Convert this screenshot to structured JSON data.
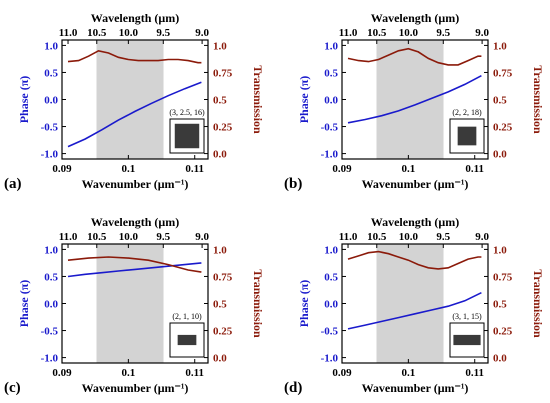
{
  "colors": {
    "phase": "#1a1acc",
    "transmission": "#8b1a0a",
    "band": "#d3d3d3",
    "axis": "#000000"
  },
  "chart_data": [
    {
      "type": "line",
      "panel_label": "(a)",
      "top_xlabel": "Wavelength (μm)",
      "top_ticks": [
        "11.0",
        "10.5",
        "10.0",
        "9.5",
        "9.0"
      ],
      "top_tick_values": [
        11.0,
        10.5,
        10.0,
        9.5,
        9.0
      ],
      "xlabel": "Wavenumber (μm⁻¹)",
      "x_ticks": [
        "0.09",
        "0.1",
        "0.11"
      ],
      "x_tick_values": [
        0.09,
        0.1,
        0.11
      ],
      "xlim": [
        0.09,
        0.112
      ],
      "ylabel_left": "Phase (π)",
      "ylim_left": [
        -1.1,
        1.1
      ],
      "y_ticks_left": [
        "-1.0",
        "-0.5",
        "0.0",
        "0.5",
        "1.0"
      ],
      "y_tick_values_left": [
        -1.0,
        -0.5,
        0.0,
        0.5,
        1.0
      ],
      "ylabel_right": "Transmission",
      "ylim_right": [
        -0.05,
        1.05
      ],
      "y_ticks_right": [
        "0.0",
        "0.25",
        "0.5",
        "0.75",
        "1.0"
      ],
      "y_tick_values_right": [
        0.0,
        0.25,
        0.5,
        0.75,
        1.0
      ],
      "shaded_band": [
        0.0952,
        0.1053
      ],
      "inset_label": "(3, 2.5, 16)",
      "inset_fill_fraction": [
        0.72,
        0.72
      ],
      "series": [
        {
          "axis": "left",
          "x": [
            0.0909,
            0.0935,
            0.096,
            0.0985,
            0.101,
            0.1035,
            0.106,
            0.1085,
            0.111
          ],
          "values": [
            -0.87,
            -0.73,
            -0.56,
            -0.38,
            -0.22,
            -0.07,
            0.07,
            0.2,
            0.32
          ]
        },
        {
          "axis": "right",
          "x": [
            0.0909,
            0.0925,
            0.094,
            0.0955,
            0.097,
            0.0985,
            0.1,
            0.1015,
            0.103,
            0.1045,
            0.106,
            0.1075,
            0.109,
            0.1105,
            0.111
          ],
          "values": [
            0.85,
            0.86,
            0.9,
            0.95,
            0.93,
            0.89,
            0.87,
            0.86,
            0.86,
            0.86,
            0.87,
            0.87,
            0.86,
            0.84,
            0.84
          ]
        }
      ]
    },
    {
      "type": "line",
      "panel_label": "(b)",
      "top_xlabel": "Wavelength (μm)",
      "top_ticks": [
        "11.0",
        "10.5",
        "10.0",
        "9.5",
        "9.0"
      ],
      "top_tick_values": [
        11.0,
        10.5,
        10.0,
        9.5,
        9.0
      ],
      "xlabel": "Wavenumber (μm⁻¹)",
      "x_ticks": [
        "0.09",
        "0.1",
        "0.11"
      ],
      "x_tick_values": [
        0.09,
        0.1,
        0.11
      ],
      "xlim": [
        0.09,
        0.112
      ],
      "ylabel_left": "Phase (π)",
      "ylim_left": [
        -1.1,
        1.1
      ],
      "y_ticks_left": [
        "-1.0",
        "-0.5",
        "0.0",
        "0.5",
        "1.0"
      ],
      "y_tick_values_left": [
        -1.0,
        -0.5,
        0.0,
        0.5,
        1.0
      ],
      "ylabel_right": "Transmission",
      "ylim_right": [
        -0.05,
        1.05
      ],
      "y_ticks_right": [
        "0.0",
        "0.25",
        "0.5",
        "0.75",
        "1.0"
      ],
      "y_tick_values_right": [
        0.0,
        0.25,
        0.5,
        0.75,
        1.0
      ],
      "shaded_band": [
        0.0952,
        0.1053
      ],
      "inset_label": "(2, 2, 18)",
      "inset_fill_fraction": [
        0.55,
        0.55
      ],
      "series": [
        {
          "axis": "left",
          "x": [
            0.0909,
            0.0935,
            0.096,
            0.0985,
            0.101,
            0.1035,
            0.106,
            0.1085,
            0.111
          ],
          "values": [
            -0.43,
            -0.37,
            -0.3,
            -0.21,
            -0.1,
            0.02,
            0.14,
            0.28,
            0.44
          ]
        },
        {
          "axis": "right",
          "x": [
            0.0909,
            0.0925,
            0.094,
            0.0955,
            0.097,
            0.0985,
            0.1,
            0.1015,
            0.103,
            0.1045,
            0.106,
            0.1075,
            0.109,
            0.1105,
            0.111
          ],
          "values": [
            0.88,
            0.86,
            0.85,
            0.87,
            0.91,
            0.95,
            0.97,
            0.94,
            0.88,
            0.84,
            0.82,
            0.82,
            0.86,
            0.9,
            0.9
          ]
        }
      ]
    },
    {
      "type": "line",
      "panel_label": "(c)",
      "top_xlabel": "Wavelength (μm)",
      "top_ticks": [
        "11.0",
        "10.5",
        "10.0",
        "9.5",
        "9.0"
      ],
      "top_tick_values": [
        11.0,
        10.5,
        10.0,
        9.5,
        9.0
      ],
      "xlabel": "Wavenumber (μm⁻¹)",
      "x_ticks": [
        "0.09",
        "0.1",
        "0.11"
      ],
      "x_tick_values": [
        0.09,
        0.1,
        0.11
      ],
      "xlim": [
        0.09,
        0.112
      ],
      "ylabel_left": "Phase (π)",
      "ylim_left": [
        -1.1,
        1.1
      ],
      "y_ticks_left": [
        "-1.0",
        "-0.5",
        "0.0",
        "0.5",
        "1.0"
      ],
      "y_tick_values_left": [
        -1.0,
        -0.5,
        0.0,
        0.5,
        1.0
      ],
      "ylabel_right": "Transmission",
      "ylim_right": [
        -0.05,
        1.05
      ],
      "y_ticks_right": [
        "0.0",
        "0.25",
        "0.5",
        "0.75",
        "1.0"
      ],
      "y_tick_values_right": [
        0.0,
        0.25,
        0.5,
        0.75,
        1.0
      ],
      "shaded_band": [
        0.0952,
        0.1053
      ],
      "inset_label": "(2, 1, 10)",
      "inset_fill_fraction": [
        0.55,
        0.3
      ],
      "series": [
        {
          "axis": "left",
          "x": [
            0.0909,
            0.0935,
            0.096,
            0.0985,
            0.101,
            0.1035,
            0.106,
            0.1085,
            0.111
          ],
          "values": [
            0.5,
            0.54,
            0.57,
            0.6,
            0.63,
            0.66,
            0.69,
            0.72,
            0.75
          ]
        },
        {
          "axis": "right",
          "x": [
            0.0909,
            0.094,
            0.097,
            0.1,
            0.103,
            0.106,
            0.109,
            0.111
          ],
          "values": [
            0.9,
            0.92,
            0.93,
            0.92,
            0.9,
            0.86,
            0.81,
            0.79
          ]
        }
      ]
    },
    {
      "type": "line",
      "panel_label": "(d)",
      "top_xlabel": "Wavelength (μm)",
      "top_ticks": [
        "11.0",
        "10.5",
        "10.0",
        "9.5",
        "9.0"
      ],
      "top_tick_values": [
        11.0,
        10.5,
        10.0,
        9.5,
        9.0
      ],
      "xlabel": "Wavenumber (μm⁻¹)",
      "x_ticks": [
        "0.09",
        "0.1",
        "0.11"
      ],
      "x_tick_values": [
        0.09,
        0.1,
        0.11
      ],
      "xlim": [
        0.09,
        0.112
      ],
      "ylabel_left": "Phase (π)",
      "ylim_left": [
        -1.1,
        1.1
      ],
      "y_ticks_left": [
        "-1.0",
        "-0.5",
        "0.0",
        "0.5",
        "1.0"
      ],
      "y_tick_values_left": [
        -1.0,
        -0.5,
        0.0,
        0.5,
        1.0
      ],
      "ylabel_right": "Transmission",
      "ylim_right": [
        -0.05,
        1.05
      ],
      "y_ticks_right": [
        "0.0",
        "0.25",
        "0.5",
        "0.75",
        "1.0"
      ],
      "y_tick_values_right": [
        0.0,
        0.25,
        0.5,
        0.75,
        1.0
      ],
      "shaded_band": [
        0.0952,
        0.1053
      ],
      "inset_label": "(3, 1, 15)",
      "inset_fill_fraction": [
        0.8,
        0.3
      ],
      "series": [
        {
          "axis": "left",
          "x": [
            0.0909,
            0.0935,
            0.096,
            0.0985,
            0.101,
            0.1035,
            0.106,
            0.1085,
            0.111
          ],
          "values": [
            -0.47,
            -0.4,
            -0.33,
            -0.26,
            -0.19,
            -0.12,
            -0.05,
            0.05,
            0.2
          ]
        },
        {
          "axis": "right",
          "x": [
            0.0909,
            0.0925,
            0.094,
            0.0955,
            0.097,
            0.0985,
            0.1,
            0.1015,
            0.103,
            0.1045,
            0.106,
            0.1075,
            0.109,
            0.1105,
            0.111
          ],
          "values": [
            0.91,
            0.94,
            0.97,
            0.98,
            0.96,
            0.93,
            0.9,
            0.86,
            0.83,
            0.82,
            0.83,
            0.87,
            0.91,
            0.93,
            0.93
          ]
        }
      ]
    }
  ]
}
